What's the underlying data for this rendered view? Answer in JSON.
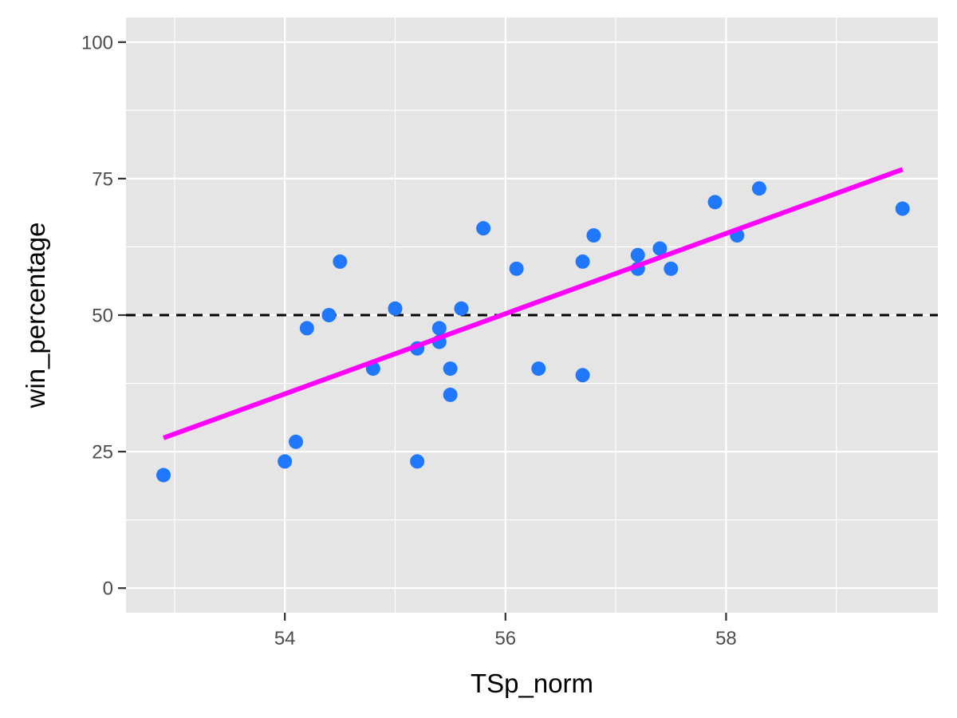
{
  "chart_data": {
    "type": "scatter",
    "xlabel": "TSp_norm",
    "ylabel": "win_percentage",
    "xlim": [
      52.56,
      59.92
    ],
    "ylim": [
      -4.5,
      104.5
    ],
    "x_ticks": [
      54,
      56,
      58
    ],
    "x_tick_labels": [
      "54",
      "56",
      "58"
    ],
    "y_ticks": [
      0,
      25,
      50,
      75,
      100
    ],
    "y_tick_labels": [
      "0",
      "25",
      "50",
      "75",
      "100"
    ],
    "grid": true,
    "legend": "none",
    "series": [
      {
        "type": "scatter",
        "color": "#1F78FF",
        "points": [
          {
            "x": 52.9,
            "y": 20.7
          },
          {
            "x": 54.0,
            "y": 23.2
          },
          {
            "x": 54.1,
            "y": 26.8
          },
          {
            "x": 54.2,
            "y": 47.6
          },
          {
            "x": 54.4,
            "y": 50.0
          },
          {
            "x": 54.5,
            "y": 59.8
          },
          {
            "x": 54.8,
            "y": 40.2
          },
          {
            "x": 55.0,
            "y": 51.2
          },
          {
            "x": 55.2,
            "y": 43.9
          },
          {
            "x": 55.2,
            "y": 23.2
          },
          {
            "x": 55.4,
            "y": 47.6
          },
          {
            "x": 55.4,
            "y": 45.1
          },
          {
            "x": 55.5,
            "y": 40.2
          },
          {
            "x": 55.5,
            "y": 35.4
          },
          {
            "x": 55.6,
            "y": 51.2
          },
          {
            "x": 55.8,
            "y": 65.9
          },
          {
            "x": 56.1,
            "y": 58.5
          },
          {
            "x": 56.3,
            "y": 40.2
          },
          {
            "x": 56.7,
            "y": 59.8
          },
          {
            "x": 56.7,
            "y": 39.0
          },
          {
            "x": 56.8,
            "y": 64.6
          },
          {
            "x": 57.2,
            "y": 61.0
          },
          {
            "x": 57.2,
            "y": 58.5
          },
          {
            "x": 57.4,
            "y": 62.2
          },
          {
            "x": 57.5,
            "y": 58.5
          },
          {
            "x": 57.9,
            "y": 70.7
          },
          {
            "x": 58.1,
            "y": 64.6
          },
          {
            "x": 58.3,
            "y": 73.2
          },
          {
            "x": 59.6,
            "y": 69.5
          }
        ]
      }
    ],
    "fit_line": {
      "type": "line",
      "color": "#FF00FF",
      "points": [
        {
          "x": 52.9,
          "y": 27.5
        },
        {
          "x": 59.6,
          "y": 76.7
        }
      ]
    },
    "reference_line": {
      "type": "hline",
      "y": 50,
      "color": "#000000",
      "style": "dashed"
    },
    "colors": {
      "panel_background": "#E5E5E5",
      "grid": "#FFFFFF",
      "point": "#1F78FF",
      "fit": "#FF00FF",
      "reference": "#000000"
    }
  }
}
